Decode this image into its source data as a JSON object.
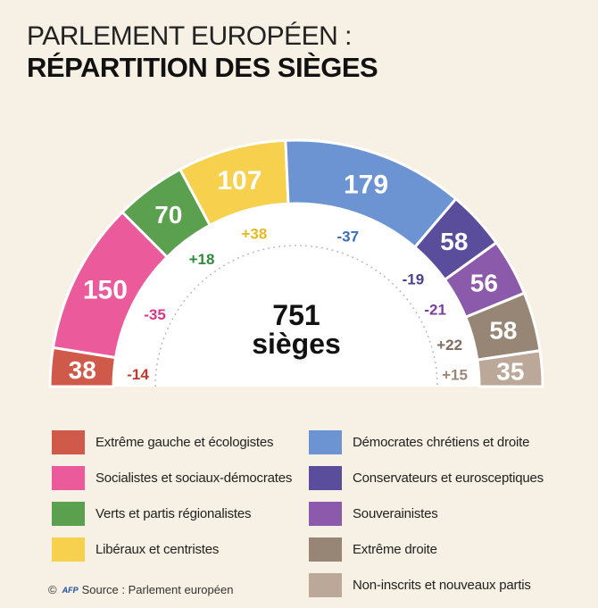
{
  "title": {
    "line1": "PARLEMENT EUROPÉEN :",
    "line2": "RÉPARTITION DES SIÈGES"
  },
  "chart_data": {
    "type": "parliament-hemicycle",
    "total_value": "751",
    "total_label": "sièges",
    "groups": [
      {
        "name": "Extrême gauche et écologistes",
        "seats": 38,
        "change": "-14",
        "color": "#cf5a4a",
        "change_color": "#c0392b"
      },
      {
        "name": "Socialistes et sociaux-démocrates",
        "seats": 150,
        "change": "-35",
        "color": "#eb5a9a",
        "change_color": "#d43a82"
      },
      {
        "name": "Verts et partis régionalistes",
        "seats": 70,
        "change": "+18",
        "color": "#5aa04e",
        "change_color": "#2e8b3a"
      },
      {
        "name": "Libéraux et centristes",
        "seats": 107,
        "change": "+38",
        "color": "#f7d04e",
        "change_color": "#e8b820"
      },
      {
        "name": "Démocrates chrétiens et droite",
        "seats": 179,
        "change": "-37",
        "color": "#6c93d2",
        "change_color": "#3a6fb8"
      },
      {
        "name": "Conservateurs et eurosceptiques",
        "seats": 58,
        "change": "-19",
        "color": "#5a4d9c",
        "change_color": "#4a3f8c"
      },
      {
        "name": "Souverainistes",
        "seats": 56,
        "change": "-21",
        "color": "#8c5aaa",
        "change_color": "#7a3f9a"
      },
      {
        "name": "Extrême droite",
        "seats": 58,
        "change": "+22",
        "color": "#978676",
        "change_color": "#7e6c5c"
      },
      {
        "name": "Non-inscrits et nouveaux partis",
        "seats": 35,
        "change": "+15",
        "color": "#bca898",
        "change_color": "#9c8878"
      }
    ]
  },
  "source": {
    "copyright": "©",
    "logo": "AFP",
    "text": "Source : Parlement européen"
  }
}
